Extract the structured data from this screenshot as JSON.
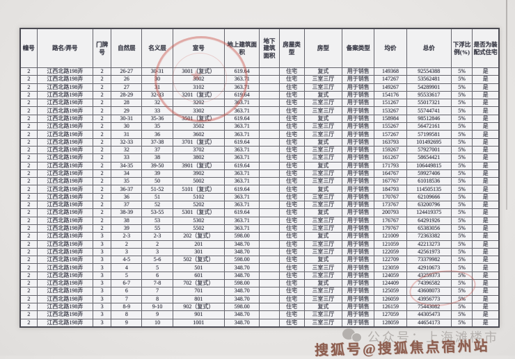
{
  "page": {
    "watermark_wechat": "公众号：上海滩楼市",
    "watermark_sohu": "搜狐号@搜狐焦点宿州站",
    "stamp_color": "#c9483e"
  },
  "chart_data": {
    "type": "table",
    "columns": [
      "幢号",
      "路名/弄号",
      "门牌号",
      "自然层",
      "名义层",
      "室号",
      "地上建筑面积",
      "地下建筑面积",
      "房屋类型",
      "房型",
      "备案类型",
      "均价",
      "总价",
      "下浮比例(%)",
      "是否为装配式住宅"
    ],
    "rows": [
      [
        "2",
        "江西北路198弄",
        "2",
        "26-27",
        "30-31",
        "3001（复式）",
        "619.64",
        "",
        "住宅",
        "复式",
        "用于销售",
        "149368",
        "92554388",
        "5%",
        "是"
      ],
      [
        "2",
        "江西北路198弄",
        "2",
        "26",
        "30",
        "3002",
        "363.71",
        "",
        "住宅",
        "三室三厅",
        "用于销售",
        "147267",
        "53562481",
        "5%",
        "是"
      ],
      [
        "2",
        "江西北路198弄",
        "2",
        "27",
        "31",
        "3102",
        "363.71",
        "",
        "住宅",
        "三室三厅",
        "用于销售",
        "149267",
        "54289901",
        "5%",
        "是"
      ],
      [
        "2",
        "江西北路198弄",
        "2",
        "28-29",
        "32-33",
        "3201（复式）",
        "619.64",
        "",
        "住宅",
        "复式",
        "用于销售",
        "154176",
        "95533617",
        "5%",
        "是"
      ],
      [
        "2",
        "江西北路198弄",
        "2",
        "28",
        "32",
        "3202",
        "363.71",
        "",
        "住宅",
        "三室三厅",
        "用于销售",
        "151267",
        "55017321",
        "5%",
        "是"
      ],
      [
        "2",
        "江西北路198弄",
        "2",
        "29",
        "33",
        "3302",
        "363.71",
        "",
        "住宅",
        "三室三厅",
        "用于销售",
        "153267",
        "55744741",
        "5%",
        "是"
      ],
      [
        "2",
        "江西北路198弄",
        "2",
        "30-31",
        "35-36",
        "3501（复式）",
        "619.64",
        "",
        "住宅",
        "复式",
        "用于销售",
        "158984",
        "98512846",
        "5%",
        "是"
      ],
      [
        "2",
        "江西北路198弄",
        "2",
        "30",
        "35",
        "3502",
        "363.71",
        "",
        "住宅",
        "三室三厅",
        "用于销售",
        "155267",
        "56472161",
        "5%",
        "是"
      ],
      [
        "2",
        "江西北路198弄",
        "2",
        "31",
        "36",
        "3602",
        "363.71",
        "",
        "住宅",
        "三室三厅",
        "用于销售",
        "157267",
        "57199581",
        "5%",
        "是"
      ],
      [
        "2",
        "江西北路198弄",
        "2",
        "32-33",
        "37-38",
        "3701（复式）",
        "619.64",
        "",
        "住宅",
        "复式",
        "用于销售",
        "163793",
        "101492695",
        "5%",
        "是"
      ],
      [
        "2",
        "江西北路198弄",
        "2",
        "32",
        "37",
        "3702",
        "363.71",
        "",
        "住宅",
        "三室三厅",
        "用于销售",
        "159267",
        "57927001",
        "5%",
        "是"
      ],
      [
        "2",
        "江西北路198弄",
        "2",
        "33",
        "38",
        "3802",
        "363.71",
        "",
        "住宅",
        "三室三厅",
        "用于销售",
        "161267",
        "58654421",
        "5%",
        "是"
      ],
      [
        "2",
        "江西北路198弄",
        "2",
        "34-35",
        "39-50",
        "3901（复式）",
        "619.64",
        "",
        "住宅",
        "复式",
        "用于销售",
        "171793",
        "106449815",
        "5%",
        "是"
      ],
      [
        "2",
        "江西北路198弄",
        "2",
        "34",
        "39",
        "3902",
        "363.71",
        "",
        "住宅",
        "三室三厅",
        "用于销售",
        "164767",
        "59927406",
        "5%",
        "是"
      ],
      [
        "2",
        "江西北路198弄",
        "2",
        "35",
        "50",
        "5002",
        "363.71",
        "",
        "住宅",
        "三室三厅",
        "用于销售",
        "167767",
        "61018536",
        "5%",
        "是"
      ],
      [
        "2",
        "江西北路198弄",
        "2",
        "36-37",
        "51-52",
        "5101（复式）",
        "619.64",
        "",
        "住宅",
        "复式",
        "用于销售",
        "184793",
        "114505135",
        "5%",
        "是"
      ],
      [
        "2",
        "江西北路198弄",
        "2",
        "36",
        "51",
        "5102",
        "363.71",
        "",
        "住宅",
        "三室三厅",
        "用于销售",
        "170767",
        "62109666",
        "5%",
        "是"
      ],
      [
        "2",
        "江西北路198弄",
        "2",
        "37",
        "52",
        "5202",
        "363.71",
        "",
        "住宅",
        "三室三厅",
        "用于销售",
        "173767",
        "63200796",
        "5%",
        "是"
      ],
      [
        "2",
        "江西北路198弄",
        "2",
        "38-39",
        "53-55",
        "5301（复式）",
        "619.64",
        "",
        "住宅",
        "复式",
        "用于销售",
        "200793",
        "124419375",
        "5%",
        "是"
      ],
      [
        "2",
        "江西北路198弄",
        "2",
        "38",
        "53",
        "5302",
        "363.71",
        "",
        "住宅",
        "三室三厅",
        "用于销售",
        "176767",
        "64291926",
        "5%",
        "是"
      ],
      [
        "2",
        "江西北路198弄",
        "2",
        "39",
        "55",
        "5502",
        "363.71",
        "",
        "住宅",
        "三室三厅",
        "用于销售",
        "179767",
        "65383056",
        "5%",
        "是"
      ],
      [
        "2",
        "江西北路198弄",
        "3",
        "2-3",
        "2-3",
        "202（复式）",
        "598.00",
        "",
        "住宅",
        "复式",
        "用于销售",
        "121009",
        "72363382",
        "5%",
        "是"
      ],
      [
        "2",
        "江西北路198弄",
        "3",
        "2",
        "2",
        "201",
        "348.70",
        "",
        "住宅",
        "三室三厅",
        "用于销售",
        "121059",
        "42213273",
        "5%",
        "是"
      ],
      [
        "2",
        "江西北路198弄",
        "3",
        "3",
        "3",
        "301",
        "348.70",
        "",
        "住宅",
        "三室三厅",
        "用于销售",
        "122059",
        "42561973",
        "5%",
        "是"
      ],
      [
        "2",
        "江西北路198弄",
        "3",
        "4-5",
        "5-6",
        "502（复式）",
        "598.00",
        "",
        "住宅",
        "复式",
        "用于销售",
        "122709",
        "73379982",
        "5%",
        "是"
      ],
      [
        "2",
        "江西北路198弄",
        "3",
        "4",
        "5",
        "501",
        "348.70",
        "",
        "住宅",
        "三室三厅",
        "用于销售",
        "123059",
        "42910673",
        "5%",
        "是"
      ],
      [
        "2",
        "江西北路198弄",
        "3",
        "5",
        "6",
        "601",
        "348.70",
        "",
        "住宅",
        "三室三厅",
        "用于销售",
        "124059",
        "43259373",
        "5%",
        "是"
      ],
      [
        "2",
        "江西北路198弄",
        "3",
        "6-7",
        "7-8",
        "702（复式）",
        "598.00",
        "",
        "住宅",
        "复式",
        "用于销售",
        "124409",
        "74396582",
        "5%",
        "是"
      ],
      [
        "2",
        "江西北路198弄",
        "3",
        "6",
        "7",
        "701",
        "348.70",
        "",
        "住宅",
        "三室三厅",
        "用于销售",
        "125059",
        "43608073",
        "5%",
        "是"
      ],
      [
        "2",
        "江西北路198弄",
        "3",
        "7",
        "8",
        "801",
        "348.70",
        "",
        "住宅",
        "三室三厅",
        "用于销售",
        "126059",
        "43956773",
        "5%",
        "是"
      ],
      [
        "2",
        "江西北路198弄",
        "3",
        "8-9",
        "9-10",
        "902（复式）",
        "598.00",
        "",
        "住宅",
        "复式",
        "用于销售",
        "126159",
        "75443082",
        "5%",
        "是"
      ],
      [
        "2",
        "江西北路198弄",
        "3",
        "8",
        "9",
        "901",
        "348.70",
        "",
        "住宅",
        "三室三厅",
        "用于销售",
        "127059",
        "44305473",
        "5%",
        "是"
      ],
      [
        "2",
        "江西北路198弄",
        "3",
        "9",
        "10",
        "1001",
        "348.70",
        "",
        "住宅",
        "三室三厅",
        "用于销售",
        "128059",
        "44654173",
        "5%",
        "是"
      ]
    ]
  }
}
